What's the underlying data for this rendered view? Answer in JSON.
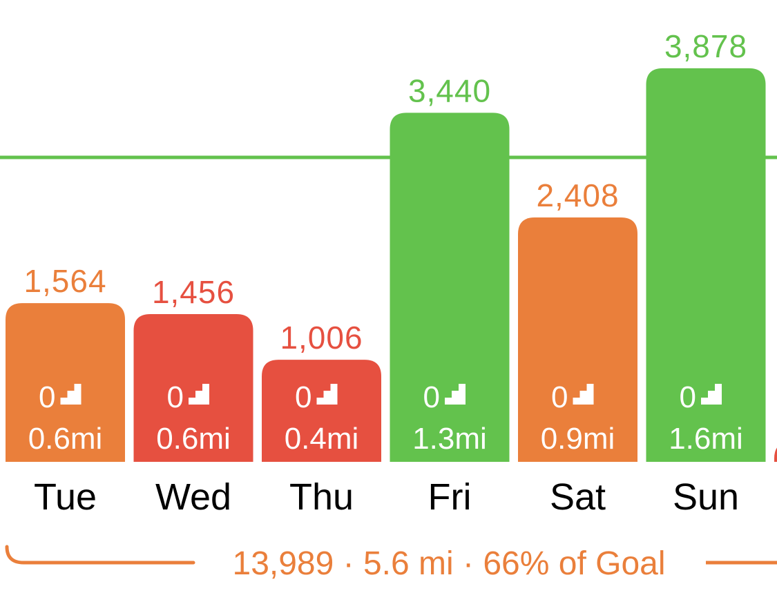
{
  "colors": {
    "green": "#63c24d",
    "orange": "#ea7f3b",
    "red": "#e65040",
    "white": "#ffffff",
    "black": "#000000"
  },
  "chart_data": {
    "type": "bar",
    "goal": 3000,
    "goal_line": true,
    "categories": [
      "Tue",
      "Wed",
      "Thu",
      "Fri",
      "Sat",
      "Sun"
    ],
    "values": [
      1564,
      1456,
      1006,
      3440,
      2408,
      3878
    ],
    "value_labels": [
      "1,564",
      "1,456",
      "1,006",
      "3,440",
      "2,408",
      "3,878"
    ],
    "status": [
      "orange",
      "red",
      "red",
      "green",
      "orange",
      "green"
    ],
    "floors": [
      "0",
      "0",
      "0",
      "0",
      "0",
      "0"
    ],
    "distances": [
      "0.6mi",
      "0.6mi",
      "0.4mi",
      "1.3mi",
      "0.9mi",
      "1.6mi"
    ],
    "floors_icon": "stairs-icon",
    "partial_next_bar_color": "red"
  },
  "summary": {
    "text": "13,989 · 5.6 mi · 66% of Goal"
  }
}
